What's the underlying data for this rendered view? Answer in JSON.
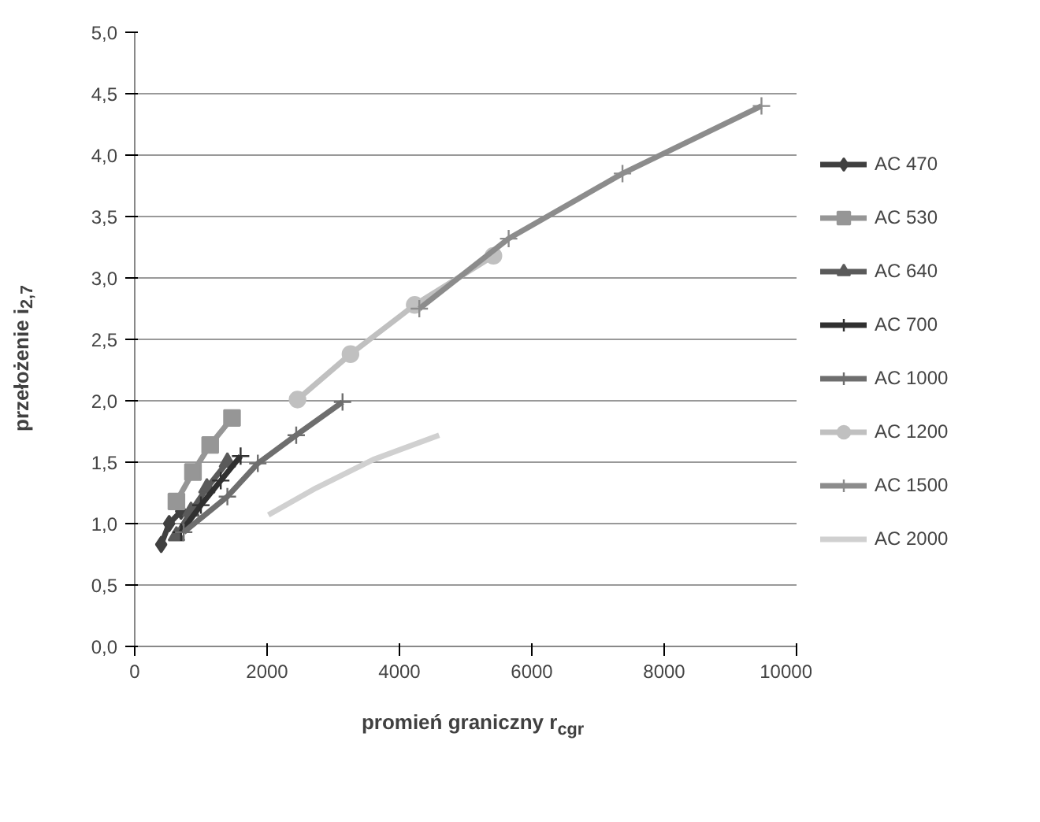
{
  "chart_data": {
    "type": "line",
    "xlabel": "promień graniczny r$_{cgr}$",
    "ylabel": "przełożenie i$_{2,7}$",
    "xlim": [
      0,
      10000
    ],
    "xticks": [
      0,
      2000,
      4000,
      6000,
      8000,
      10000
    ],
    "ylim": [
      0,
      5
    ],
    "yticks": [
      {
        "value": 0,
        "label": "0,0"
      },
      {
        "value": 0.5,
        "label": "0,5"
      },
      {
        "value": 1,
        "label": "1,0"
      },
      {
        "value": 1.5,
        "label": "1,5"
      },
      {
        "value": 2,
        "label": "2,0"
      },
      {
        "value": 2.5,
        "label": "2,5"
      },
      {
        "value": 3,
        "label": "3,0"
      },
      {
        "value": 3.5,
        "label": "3,5"
      },
      {
        "value": 4,
        "label": "4,0"
      },
      {
        "value": 4.5,
        "label": "4,5"
      },
      {
        "value": 5,
        "label": "5,0"
      }
    ],
    "grid": "y",
    "legend": "right",
    "series": [
      {
        "name": "AC 470",
        "color": "#404040",
        "marker": "diamond",
        "x": [
          400,
          520,
          700
        ],
        "values": [
          0.83,
          1.0,
          1.1
        ]
      },
      {
        "name": "AC 530",
        "color": "#969696",
        "marker": "square",
        "x": [
          630,
          880,
          1140,
          1470
        ],
        "values": [
          1.18,
          1.42,
          1.64,
          1.86
        ]
      },
      {
        "name": "AC 640",
        "color": "#5a5a5a",
        "marker": "triangle",
        "x": [
          630,
          850,
          1090,
          1400
        ],
        "values": [
          0.9,
          1.1,
          1.29,
          1.5
        ]
      },
      {
        "name": "AC 700",
        "color": "#303030",
        "marker": "cross",
        "x": [
          700,
          1000,
          1300,
          1600
        ],
        "values": [
          0.93,
          1.15,
          1.35,
          1.55
        ]
      },
      {
        "name": "AC 1000",
        "color": "#6e6e6e",
        "marker": "cross",
        "x": [
          740,
          1400,
          1860,
          2440,
          3140
        ],
        "values": [
          0.93,
          1.22,
          1.49,
          1.72,
          1.99
        ]
      },
      {
        "name": "AC 1200",
        "color": "#c0c0c0",
        "marker": "circle",
        "x": [
          2460,
          3260,
          4230,
          5420
        ],
        "values": [
          2.01,
          2.38,
          2.78,
          3.18
        ]
      },
      {
        "name": "AC 1500",
        "color": "#8c8c8c",
        "marker": "cross",
        "x": [
          4300,
          5650,
          7370,
          9470
        ],
        "values": [
          2.75,
          3.32,
          3.85,
          4.4
        ]
      },
      {
        "name": "AC 2000",
        "color": "#d0d0d0",
        "marker": "none",
        "x": [
          2020,
          2740,
          3600,
          4600
        ],
        "values": [
          1.07,
          1.29,
          1.52,
          1.72
        ]
      }
    ]
  }
}
